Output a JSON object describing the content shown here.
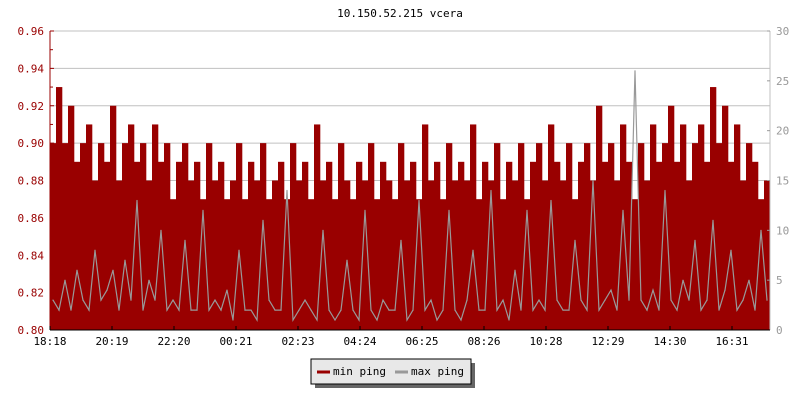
{
  "chart_data": {
    "type": "area",
    "title": "10.150.52.215 vcera",
    "x_tick_labels": [
      "18:18",
      "20:19",
      "22:20",
      "00:21",
      "02:23",
      "04:24",
      "06:25",
      "08:26",
      "10:28",
      "12:29",
      "14:30",
      "16:31"
    ],
    "y_left": {
      "ylim": [
        0.8,
        0.96
      ],
      "ticks": [
        "0.80",
        "0.82",
        "0.84",
        "0.86",
        "0.88",
        "0.90",
        "0.92",
        "0.94",
        "0.96"
      ]
    },
    "y_right": {
      "ylim": [
        0,
        30
      ],
      "ticks": [
        "0",
        "5",
        "10",
        "15",
        "20",
        "25",
        "30"
      ]
    },
    "grid": true,
    "legend_position": "bottom",
    "series": [
      {
        "name": "min ping",
        "axis": "left",
        "color": "#990000",
        "values": [
          0.9,
          0.93,
          0.9,
          0.92,
          0.89,
          0.9,
          0.91,
          0.88,
          0.9,
          0.89,
          0.92,
          0.88,
          0.9,
          0.91,
          0.89,
          0.9,
          0.88,
          0.91,
          0.89,
          0.9,
          0.87,
          0.89,
          0.9,
          0.88,
          0.89,
          0.87,
          0.9,
          0.88,
          0.89,
          0.87,
          0.88,
          0.9,
          0.87,
          0.89,
          0.88,
          0.9,
          0.87,
          0.88,
          0.89,
          0.87,
          0.9,
          0.88,
          0.89,
          0.87,
          0.91,
          0.88,
          0.89,
          0.87,
          0.9,
          0.88,
          0.87,
          0.89,
          0.88,
          0.9,
          0.87,
          0.89,
          0.88,
          0.87,
          0.9,
          0.88,
          0.89,
          0.87,
          0.91,
          0.88,
          0.89,
          0.87,
          0.9,
          0.88,
          0.89,
          0.88,
          0.91,
          0.87,
          0.89,
          0.88,
          0.9,
          0.87,
          0.89,
          0.88,
          0.9,
          0.87,
          0.89,
          0.9,
          0.88,
          0.91,
          0.89,
          0.88,
          0.9,
          0.87,
          0.89,
          0.9,
          0.88,
          0.92,
          0.89,
          0.9,
          0.88,
          0.91,
          0.89,
          0.87,
          0.9,
          0.88,
          0.91,
          0.89,
          0.9,
          0.92,
          0.89,
          0.91,
          0.88,
          0.9,
          0.91,
          0.89,
          0.93,
          0.9,
          0.92,
          0.89,
          0.91,
          0.88,
          0.9,
          0.89,
          0.87,
          0.88
        ]
      },
      {
        "name": "max ping",
        "axis": "right",
        "color": "#999999",
        "values": [
          3,
          2,
          5,
          2,
          6,
          3,
          2,
          8,
          3,
          4,
          6,
          2,
          7,
          3,
          13,
          2,
          5,
          3,
          10,
          2,
          3,
          2,
          9,
          2,
          2,
          12,
          2,
          3,
          2,
          4,
          1,
          8,
          2,
          2,
          1,
          11,
          3,
          2,
          2,
          14,
          1,
          2,
          3,
          2,
          1,
          10,
          2,
          1,
          2,
          7,
          2,
          1,
          12,
          2,
          1,
          3,
          2,
          2,
          9,
          1,
          2,
          13,
          2,
          3,
          1,
          2,
          12,
          2,
          1,
          3,
          8,
          2,
          2,
          14,
          2,
          3,
          1,
          6,
          2,
          12,
          2,
          3,
          2,
          13,
          3,
          2,
          2,
          9,
          3,
          2,
          15,
          2,
          3,
          4,
          2,
          12,
          3,
          26,
          3,
          2,
          4,
          2,
          14,
          3,
          2,
          5,
          3,
          9,
          2,
          3,
          11,
          2,
          4,
          8,
          2,
          3,
          5,
          2,
          10,
          3
        ]
      }
    ],
    "left_axis_color": "#990000",
    "right_axis_color": "#999999"
  }
}
